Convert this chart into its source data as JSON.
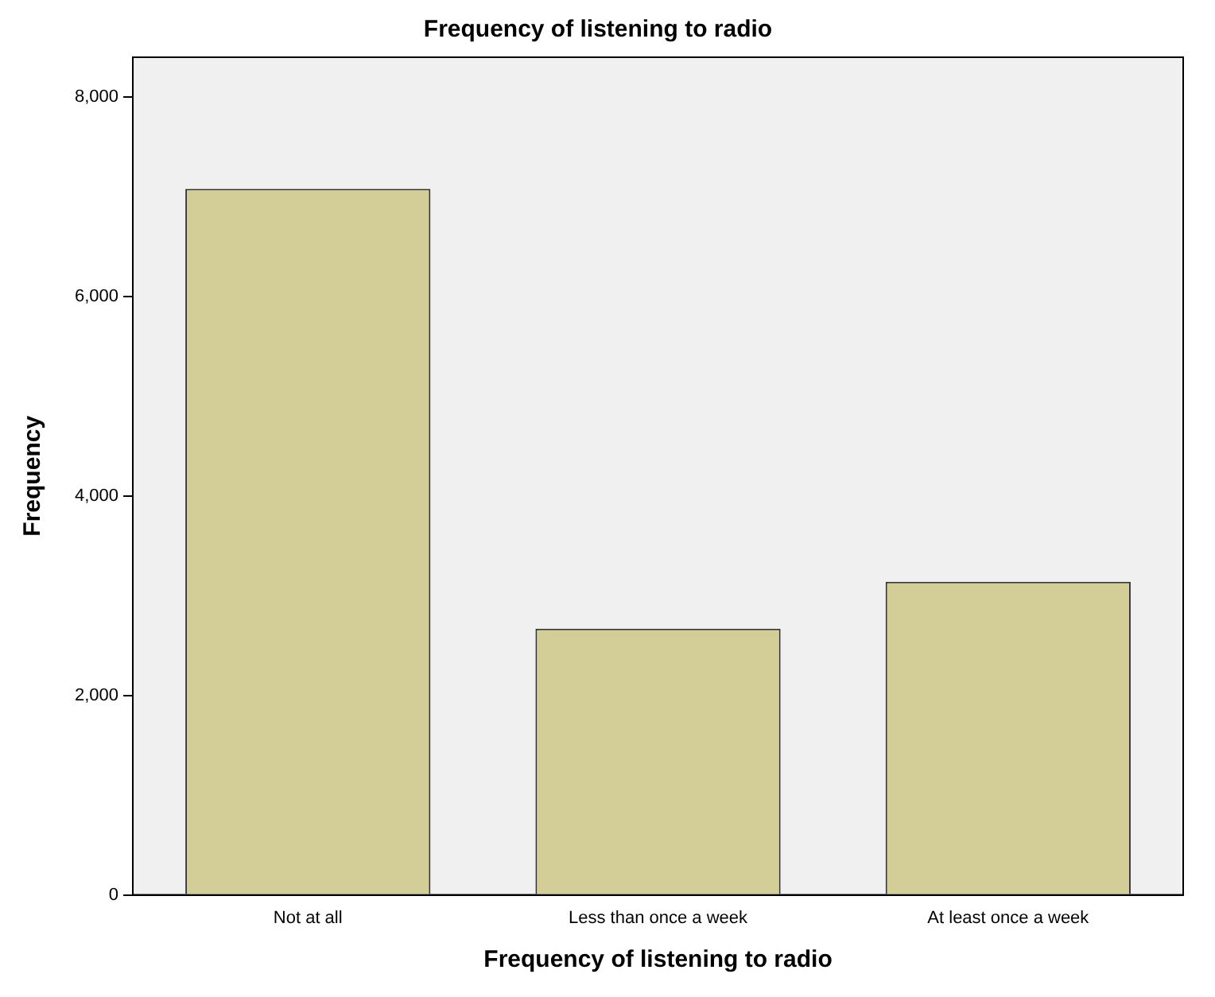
{
  "chart_data": {
    "type": "bar",
    "title": "Frequency of listening to radio",
    "xlabel": "Frequency of listening to radio",
    "ylabel": "Frequency",
    "categories": [
      "Not at all",
      "Less than once a week",
      "At least once a week"
    ],
    "values": [
      7080,
      2670,
      3140
    ],
    "color": "#d3ce97",
    "ylim": [
      0,
      8400
    ],
    "yticks": [
      {
        "value": 0,
        "label": "0"
      },
      {
        "value": 2000,
        "label": "2,000"
      },
      {
        "value": 4000,
        "label": "4,000"
      },
      {
        "value": 6000,
        "label": "6,000"
      },
      {
        "value": 8000,
        "label": "8,000"
      }
    ],
    "grid": false,
    "legend": false
  }
}
